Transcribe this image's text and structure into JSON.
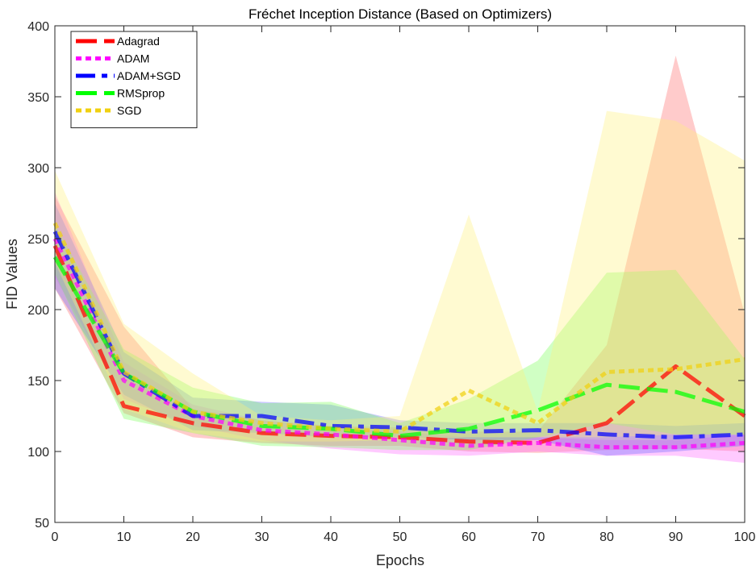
{
  "chart_data": {
    "type": "line",
    "title": "Fréchet Inception Distance  (Based on Optimizers)",
    "xlabel": "Epochs",
    "ylabel": "FID Values",
    "xlim": [
      0,
      100
    ],
    "ylim": [
      50,
      400
    ],
    "x_ticks": [
      "0",
      "10",
      "20",
      "30",
      "40",
      "50",
      "60",
      "70",
      "80",
      "90",
      "100"
    ],
    "y_ticks": [
      "50",
      "100",
      "150",
      "200",
      "250",
      "300",
      "350",
      "400"
    ],
    "x": [
      0,
      10,
      20,
      30,
      40,
      50,
      60,
      70,
      80,
      90,
      100
    ],
    "legend_position": "top-left",
    "series": [
      {
        "name": "Adagrad",
        "color": "#ff0000",
        "band_color": "#ff6b6b",
        "dash": "dashed",
        "values": [
          245,
          132,
          120,
          113,
          111,
          110,
          107,
          106,
          120,
          160,
          125
        ],
        "upper": [
          280,
          188,
          130,
          122,
          118,
          117,
          114,
          114,
          175,
          379,
          197
        ],
        "lower": [
          215,
          127,
          110,
          106,
          104,
          104,
          100,
          99,
          101,
          102,
          100
        ]
      },
      {
        "name": "ADAM",
        "color": "#ff00ff",
        "band_color": "#ff66ff",
        "dash": "dotted",
        "values": [
          250,
          150,
          125,
          115,
          112,
          108,
          104,
          106,
          103,
          103,
          106
        ],
        "upper": [
          283,
          163,
          133,
          122,
          118,
          114,
          110,
          110,
          108,
          108,
          112
        ],
        "lower": [
          223,
          137,
          118,
          108,
          102,
          98,
          97,
          100,
          97,
          97,
          92
        ]
      },
      {
        "name": "ADAM+SGD",
        "color": "#0000ff",
        "band_color": "#6666ff",
        "dash": "dashdot",
        "values": [
          255,
          155,
          125,
          125,
          118,
          117,
          114,
          115,
          112,
          110,
          112
        ],
        "upper": [
          275,
          170,
          138,
          135,
          133,
          122,
          120,
          120,
          120,
          118,
          120
        ],
        "lower": [
          215,
          140,
          115,
          113,
          110,
          110,
          108,
          108,
          97,
          100,
          104
        ]
      },
      {
        "name": "RMSprop",
        "color": "#00ff00",
        "band_color": "#77ff55",
        "dash": "dashed",
        "values": [
          237,
          155,
          128,
          118,
          116,
          111,
          116,
          129,
          147,
          142,
          128
        ],
        "upper": [
          260,
          172,
          145,
          134,
          135,
          120,
          137,
          164,
          226,
          228,
          165
        ],
        "lower": [
          225,
          123,
          113,
          104,
          103,
          101,
          101,
          110,
          120,
          112,
          112
        ]
      },
      {
        "name": "SGD",
        "color": "#f0d010",
        "band_color": "#fff07a",
        "dash": "dotted",
        "values": [
          261,
          156,
          128,
          120,
          116,
          114,
          143,
          120,
          156,
          158,
          165
        ],
        "upper": [
          298,
          190,
          155,
          125,
          122,
          125,
          267,
          128,
          340,
          333,
          305
        ],
        "lower": [
          233,
          130,
          113,
          107,
          107,
          108,
          110,
          110,
          110,
          112,
          112
        ]
      }
    ]
  }
}
